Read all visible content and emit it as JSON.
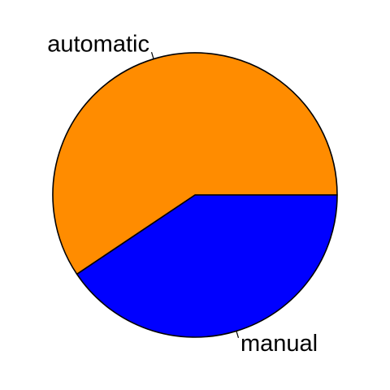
{
  "chart_data": {
    "type": "pie",
    "slices": [
      {
        "label": "automatic",
        "value": 59.4,
        "color": "#FF8C00"
      },
      {
        "label": "manual",
        "value": 40.6,
        "color": "#0000FF"
      }
    ],
    "start_angle_deg": 0,
    "direction": "counterclockwise",
    "legend": "none"
  }
}
